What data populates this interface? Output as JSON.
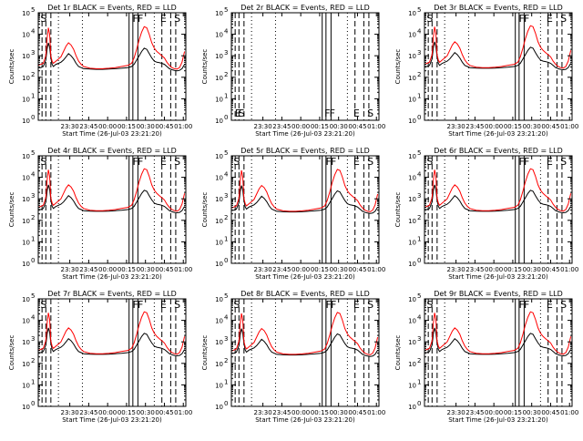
{
  "chart_data": {
    "type": "line",
    "layout": "3x3 grid of small multiples",
    "xlabel": "Start Time (26-Jul-03 23:21:20)",
    "ylabel": "Counts/sec",
    "xlim_minutes": [
      -16,
      101
    ],
    "x_tick_minutes": [
      9,
      24,
      39,
      54,
      69,
      84,
      99
    ],
    "x_tick_labels": [
      "23:30",
      "23:45",
      "00:00",
      "00:15",
      "00:30",
      "00:45",
      "01:00"
    ],
    "y_scale": "log",
    "ylim": [
      1,
      100000
    ],
    "y_ticks": [
      1,
      10,
      100,
      1000,
      10000,
      100000
    ],
    "y_tick_labels": [
      {
        "base": "10",
        "exp": "0"
      },
      {
        "base": "10",
        "exp": "1"
      },
      {
        "base": "10",
        "exp": "2"
      },
      {
        "base": "10",
        "exp": "3"
      },
      {
        "base": "10",
        "exp": "4"
      },
      {
        "base": "10",
        "exp": "5"
      }
    ],
    "series_colors": {
      "events": "#000000",
      "lld": "#ff0000"
    },
    "base_profile_minutes": {
      "x": [
        -16,
        -14,
        -12,
        -10,
        -9,
        -8,
        -7,
        -6,
        -5,
        -4,
        -3,
        -2,
        0,
        2,
        4,
        6,
        8,
        10,
        12,
        14,
        16,
        18,
        20,
        25,
        30,
        35,
        40,
        45,
        50,
        55,
        58,
        60,
        62,
        64,
        66,
        68,
        70,
        72,
        74,
        76,
        78,
        80,
        82,
        84,
        86,
        88,
        90,
        92,
        94,
        96,
        98,
        100
      ],
      "events": [
        2.45,
        2.45,
        2.5,
        2.8,
        3.3,
        3.6,
        3.4,
        2.9,
        2.6,
        2.5,
        2.55,
        2.6,
        2.65,
        2.7,
        2.8,
        2.95,
        3.1,
        3.0,
        2.85,
        2.65,
        2.5,
        2.45,
        2.4,
        2.38,
        2.37,
        2.37,
        2.38,
        2.4,
        2.42,
        2.45,
        2.5,
        2.6,
        2.8,
        3.0,
        3.2,
        3.35,
        3.3,
        3.1,
        2.9,
        2.75,
        2.7,
        2.68,
        2.65,
        2.6,
        2.5,
        2.4,
        2.35,
        2.32,
        2.3,
        2.32,
        2.4,
        2.6
      ],
      "lld": [
        2.55,
        2.6,
        2.65,
        3.0,
        3.8,
        4.3,
        4.0,
        3.0,
        2.75,
        2.65,
        2.7,
        2.75,
        2.85,
        2.95,
        3.2,
        3.45,
        3.6,
        3.5,
        3.3,
        3.0,
        2.75,
        2.6,
        2.5,
        2.42,
        2.4,
        2.4,
        2.42,
        2.45,
        2.5,
        2.55,
        2.65,
        2.9,
        3.3,
        3.75,
        4.1,
        4.35,
        4.3,
        4.0,
        3.6,
        3.35,
        3.2,
        3.1,
        3.0,
        2.9,
        2.7,
        2.55,
        2.45,
        2.4,
        2.38,
        2.45,
        2.7,
        3.2
      ]
    },
    "charts": [
      {
        "title": "Det 1r BLACK = Events, RED = LLD",
        "offset_log": 0,
        "has_data": true,
        "solid_x": [
          56,
          59,
          63
        ],
        "dashed_x": [
          -13,
          -10,
          -6,
          82,
          89,
          93
        ],
        "dotted_x": [
          0,
          19,
          76
        ],
        "labels": [
          {
            "text": "S",
            "x": -15
          },
          {
            "text": "F",
            "x": 58
          },
          {
            "text": "F",
            "x": 62
          },
          {
            "text": "E",
            "x": 80
          },
          {
            "text": "S",
            "x": 91
          }
        ],
        "label_pos": "top"
      },
      {
        "title": "Det 2r BLACK = Events, RED = LLD",
        "offset_log": 0,
        "has_data": false,
        "solid_x": [
          56,
          59,
          63
        ],
        "dashed_x": [
          -13,
          -10,
          -6,
          82,
          89,
          93
        ],
        "dotted_x": [
          0,
          19,
          76
        ],
        "labels": [
          {
            "text": "E",
            "x": -14
          },
          {
            "text": "S",
            "x": -11
          },
          {
            "text": "F",
            "x": 57
          },
          {
            "text": "F",
            "x": 61
          },
          {
            "text": "E",
            "x": 80
          },
          {
            "text": "S",
            "x": 91
          }
        ],
        "label_pos": "bottom"
      },
      {
        "title": "Det 3r BLACK = Events, RED = LLD",
        "offset_log": 0.05,
        "has_data": true,
        "solid_x": [
          56,
          59,
          63
        ],
        "dashed_x": [
          -13,
          -10,
          -6,
          82,
          89,
          93
        ],
        "dotted_x": [
          0,
          19,
          76
        ],
        "labels": [
          {
            "text": "S",
            "x": -15
          },
          {
            "text": "F",
            "x": 58
          },
          {
            "text": "F",
            "x": 62
          },
          {
            "text": "E",
            "x": 80
          },
          {
            "text": "S",
            "x": 91
          }
        ],
        "label_pos": "top"
      },
      {
        "title": "Det 4r BLACK = Events, RED = LLD",
        "offset_log": 0.05,
        "has_data": true,
        "solid_x": [
          56,
          59,
          63
        ],
        "dashed_x": [
          -13,
          -10,
          -6,
          82,
          89,
          93
        ],
        "dotted_x": [
          0,
          19,
          76
        ],
        "labels": [
          {
            "text": "S",
            "x": -15
          },
          {
            "text": "F",
            "x": 58
          },
          {
            "text": "F",
            "x": 62
          },
          {
            "text": "E",
            "x": 80
          },
          {
            "text": "S",
            "x": 91
          }
        ],
        "label_pos": "top"
      },
      {
        "title": "Det 5r BLACK = Events, RED = LLD",
        "offset_log": 0.02,
        "has_data": true,
        "solid_x": [
          56,
          59,
          63
        ],
        "dashed_x": [
          -13,
          -10,
          -6,
          82,
          89,
          93
        ],
        "dotted_x": [
          0,
          19,
          76
        ],
        "labels": [
          {
            "text": "S",
            "x": -15
          },
          {
            "text": "F",
            "x": 58
          },
          {
            "text": "F",
            "x": 62
          },
          {
            "text": "E",
            "x": 80
          },
          {
            "text": "S",
            "x": 91
          }
        ],
        "label_pos": "top"
      },
      {
        "title": "Det 6r BLACK = Events, RED = LLD",
        "offset_log": 0.05,
        "has_data": true,
        "solid_x": [
          56,
          59,
          63
        ],
        "dashed_x": [
          -13,
          -10,
          -6,
          82,
          89,
          93
        ],
        "dotted_x": [
          0,
          19,
          76
        ],
        "labels": [
          {
            "text": "S",
            "x": -15
          },
          {
            "text": "F",
            "x": 58
          },
          {
            "text": "F",
            "x": 62
          },
          {
            "text": "E",
            "x": 80
          },
          {
            "text": "S",
            "x": 91
          }
        ],
        "label_pos": "top"
      },
      {
        "title": "Det 7r BLACK = Events, RED = LLD",
        "offset_log": 0.05,
        "has_data": true,
        "solid_x": [
          56,
          59,
          63
        ],
        "dashed_x": [
          -13,
          -10,
          -6,
          82,
          89,
          93
        ],
        "dotted_x": [
          0,
          19,
          76
        ],
        "labels": [
          {
            "text": "S",
            "x": -15
          },
          {
            "text": "F",
            "x": 58
          },
          {
            "text": "F",
            "x": 62
          },
          {
            "text": "E",
            "x": 80
          },
          {
            "text": "S",
            "x": 91
          }
        ],
        "label_pos": "top"
      },
      {
        "title": "Det 8r BLACK = Events, RED = LLD",
        "offset_log": 0.02,
        "has_data": true,
        "solid_x": [
          56,
          59,
          63
        ],
        "dashed_x": [
          -13,
          -10,
          -6,
          82,
          89,
          93
        ],
        "dotted_x": [
          0,
          19,
          76
        ],
        "labels": [
          {
            "text": "S",
            "x": -15
          },
          {
            "text": "F",
            "x": 58
          },
          {
            "text": "F",
            "x": 62
          },
          {
            "text": "E",
            "x": 80
          },
          {
            "text": "S",
            "x": 91
          }
        ],
        "label_pos": "top"
      },
      {
        "title": "Det 9r BLACK = Events, RED = LLD",
        "offset_log": 0.05,
        "has_data": true,
        "solid_x": [
          56,
          59,
          63
        ],
        "dashed_x": [
          -13,
          -10,
          -6,
          82,
          89,
          93
        ],
        "dotted_x": [
          0,
          19,
          76
        ],
        "labels": [
          {
            "text": "S",
            "x": -15
          },
          {
            "text": "F",
            "x": 58
          },
          {
            "text": "F",
            "x": 62
          },
          {
            "text": "E",
            "x": 80
          },
          {
            "text": "S",
            "x": 91
          }
        ],
        "label_pos": "top"
      }
    ]
  }
}
